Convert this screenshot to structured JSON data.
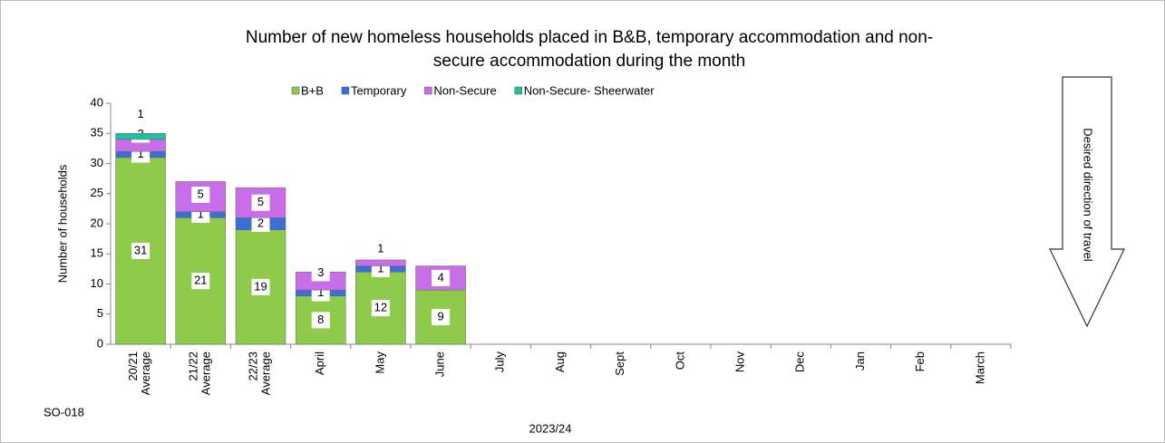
{
  "chart_data": {
    "type": "stacked_bar",
    "title": [
      "Number of new homeless households placed in B&B, temporary accommodation and non-",
      "secure accommodation during the month"
    ],
    "y_label": "Number of households",
    "x_label": "2023/24",
    "annotation": "SO-018",
    "direction_note": "Desired direction of travel",
    "categories": [
      "20/21 Average",
      "21/22 Average",
      "22/23 Average",
      "April",
      "May",
      "June",
      "July",
      "Aug",
      "Sept",
      "Oct",
      "Nov",
      "Dec",
      "Jan",
      "Feb",
      "March"
    ],
    "series": [
      {
        "name": "B+B",
        "color": "#8fcb4a",
        "values": [
          31,
          21,
          19,
          8,
          12,
          9,
          null,
          null,
          null,
          null,
          null,
          null,
          null,
          null,
          null
        ]
      },
      {
        "name": "Temporary",
        "color": "#3b6fd6",
        "values": [
          1,
          1,
          2,
          1,
          1,
          0,
          null,
          null,
          null,
          null,
          null,
          null,
          null,
          null,
          null
        ]
      },
      {
        "name": "Non-Secure",
        "color": "#c86ee8",
        "values": [
          2,
          5,
          5,
          3,
          1,
          4,
          null,
          null,
          null,
          null,
          null,
          null,
          null,
          null,
          null
        ]
      },
      {
        "name": "Non-Secure- Sheerwater",
        "color": "#20c0a0",
        "values": [
          1,
          0,
          0,
          0,
          0,
          0,
          null,
          null,
          null,
          null,
          null,
          null,
          null,
          null,
          null
        ]
      }
    ],
    "ylim": [
      0,
      40
    ],
    "yticks": [
      0,
      5,
      10,
      15,
      20,
      25,
      30,
      35,
      40
    ],
    "legend": "top"
  }
}
